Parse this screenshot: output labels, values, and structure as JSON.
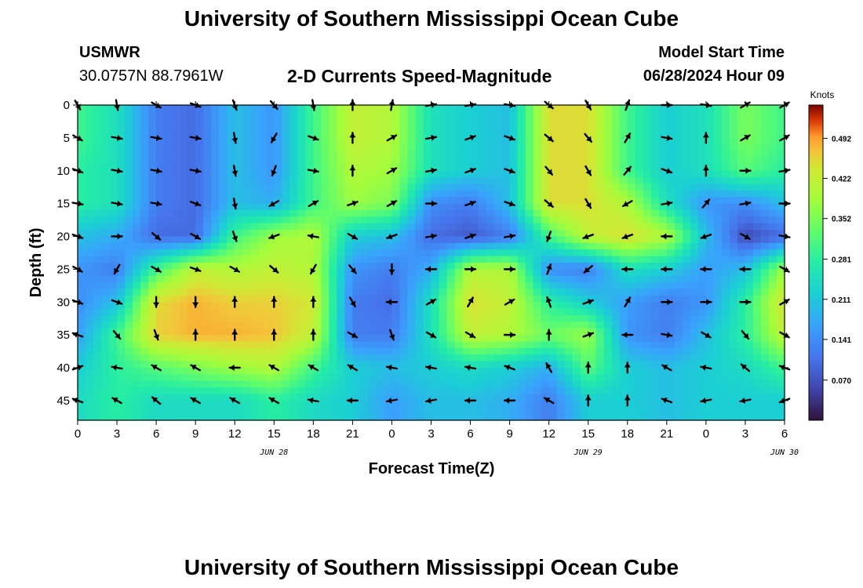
{
  "header": {
    "title": "University of Southern Mississippi Ocean Cube",
    "station_name": "USMWR",
    "station_coords": "30.0757N  88.7961W",
    "plot_title": "2-D Currents Speed-Magnitude",
    "model_start_label": "Model Start Time",
    "model_start_value": "06/28/2024 Hour 09"
  },
  "footer": {
    "title": "University of Southern Mississippi Ocean Cube"
  },
  "chart_data": {
    "type": "heatmap",
    "title": "2-D Currents Speed-Magnitude",
    "xlabel": "Forecast Time(Z)",
    "ylabel": "Depth (ft)",
    "colorbar_label": "Knots",
    "colorbar_ticks": [
      "0.070",
      "0.141",
      "0.211",
      "0.281",
      "0.352",
      "0.422",
      "0.492"
    ],
    "colorbar_range": [
      0.0,
      0.55
    ],
    "x_tick_labels": [
      "0",
      "3",
      "6",
      "9",
      "12",
      "15",
      "18",
      "21",
      "0",
      "3",
      "6",
      "9",
      "12",
      "15",
      "18",
      "21",
      "0",
      "3",
      "6"
    ],
    "x_date_labels": [
      {
        "text": "JUN 28",
        "x_hours": 15
      },
      {
        "text": "JUN 29",
        "x_hours": 39
      },
      {
        "text": "JUN 30",
        "x_hours": 54
      }
    ],
    "x_range_hours": [
      0,
      54
    ],
    "y_tick_labels": [
      "0",
      "5",
      "10",
      "15",
      "20",
      "25",
      "30",
      "35",
      "40",
      "45"
    ],
    "y_range_ft": [
      0,
      48
    ],
    "depths_ft": [
      0,
      5,
      10,
      15,
      20,
      25,
      30,
      35,
      40,
      45
    ],
    "times_hours": [
      0,
      3,
      6,
      9,
      12,
      15,
      18,
      21,
      24,
      27,
      30,
      33,
      36,
      39,
      42,
      45,
      48,
      51,
      54
    ],
    "speed_knots": [
      [
        0.3,
        0.25,
        0.12,
        0.1,
        0.2,
        0.15,
        0.3,
        0.42,
        0.4,
        0.25,
        0.22,
        0.2,
        0.45,
        0.45,
        0.3,
        0.22,
        0.25,
        0.35,
        0.3
      ],
      [
        0.3,
        0.25,
        0.12,
        0.1,
        0.2,
        0.15,
        0.3,
        0.42,
        0.4,
        0.25,
        0.22,
        0.2,
        0.45,
        0.45,
        0.3,
        0.22,
        0.25,
        0.35,
        0.3
      ],
      [
        0.28,
        0.25,
        0.12,
        0.1,
        0.2,
        0.15,
        0.3,
        0.4,
        0.38,
        0.25,
        0.22,
        0.2,
        0.45,
        0.45,
        0.3,
        0.22,
        0.25,
        0.32,
        0.28
      ],
      [
        0.28,
        0.25,
        0.12,
        0.1,
        0.2,
        0.18,
        0.3,
        0.38,
        0.35,
        0.14,
        0.12,
        0.2,
        0.45,
        0.45,
        0.4,
        0.25,
        0.15,
        0.14,
        0.2
      ],
      [
        0.2,
        0.18,
        0.1,
        0.1,
        0.3,
        0.38,
        0.4,
        0.22,
        0.2,
        0.1,
        0.08,
        0.12,
        0.3,
        0.42,
        0.45,
        0.4,
        0.2,
        0.06,
        0.1
      ],
      [
        0.15,
        0.12,
        0.3,
        0.42,
        0.4,
        0.42,
        0.4,
        0.15,
        0.12,
        0.18,
        0.4,
        0.4,
        0.14,
        0.12,
        0.25,
        0.22,
        0.16,
        0.2,
        0.38
      ],
      [
        0.14,
        0.2,
        0.45,
        0.48,
        0.46,
        0.46,
        0.44,
        0.12,
        0.1,
        0.25,
        0.45,
        0.42,
        0.28,
        0.22,
        0.16,
        0.12,
        0.15,
        0.28,
        0.45
      ],
      [
        0.16,
        0.3,
        0.46,
        0.48,
        0.48,
        0.47,
        0.42,
        0.12,
        0.12,
        0.25,
        0.42,
        0.4,
        0.34,
        0.38,
        0.15,
        0.12,
        0.2,
        0.28,
        0.42
      ],
      [
        0.22,
        0.28,
        0.32,
        0.35,
        0.38,
        0.4,
        0.3,
        0.22,
        0.2,
        0.22,
        0.24,
        0.22,
        0.18,
        0.32,
        0.22,
        0.2,
        0.22,
        0.24,
        0.3
      ],
      [
        0.24,
        0.28,
        0.24,
        0.24,
        0.24,
        0.28,
        0.24,
        0.22,
        0.16,
        0.2,
        0.2,
        0.18,
        0.12,
        0.22,
        0.22,
        0.2,
        0.22,
        0.22,
        0.22
      ]
    ],
    "direction_deg": [
      [
        150,
        170,
        120,
        110,
        160,
        140,
        170,
        0,
        10,
        80,
        80,
        100,
        130,
        150,
        20,
        90,
        100,
        60,
        60
      ],
      [
        120,
        100,
        100,
        100,
        170,
        210,
        110,
        0,
        60,
        80,
        70,
        110,
        130,
        140,
        30,
        100,
        0,
        60,
        60
      ],
      [
        110,
        100,
        100,
        100,
        170,
        200,
        100,
        0,
        60,
        80,
        70,
        110,
        140,
        150,
        40,
        110,
        0,
        90,
        80
      ],
      [
        100,
        100,
        100,
        110,
        170,
        240,
        60,
        70,
        60,
        90,
        70,
        110,
        130,
        150,
        240,
        80,
        40,
        80,
        90
      ],
      [
        110,
        90,
        130,
        120,
        160,
        250,
        280,
        120,
        250,
        80,
        70,
        80,
        200,
        250,
        250,
        270,
        250,
        120,
        100
      ],
      [
        120,
        210,
        120,
        110,
        120,
        130,
        210,
        140,
        180,
        270,
        90,
        90,
        20,
        230,
        270,
        270,
        270,
        270,
        120
      ],
      [
        110,
        110,
        180,
        180,
        0,
        0,
        0,
        150,
        270,
        60,
        30,
        60,
        340,
        70,
        30,
        90,
        90,
        90,
        60
      ],
      [
        290,
        140,
        160,
        0,
        0,
        0,
        0,
        120,
        160,
        120,
        120,
        90,
        0,
        70,
        270,
        100,
        120,
        140,
        120
      ],
      [
        70,
        280,
        300,
        300,
        270,
        300,
        300,
        300,
        280,
        280,
        280,
        290,
        330,
        0,
        0,
        300,
        280,
        310,
        290
      ],
      [
        290,
        300,
        310,
        300,
        300,
        300,
        280,
        270,
        260,
        260,
        270,
        270,
        300,
        0,
        0,
        290,
        260,
        260,
        250
      ]
    ]
  }
}
